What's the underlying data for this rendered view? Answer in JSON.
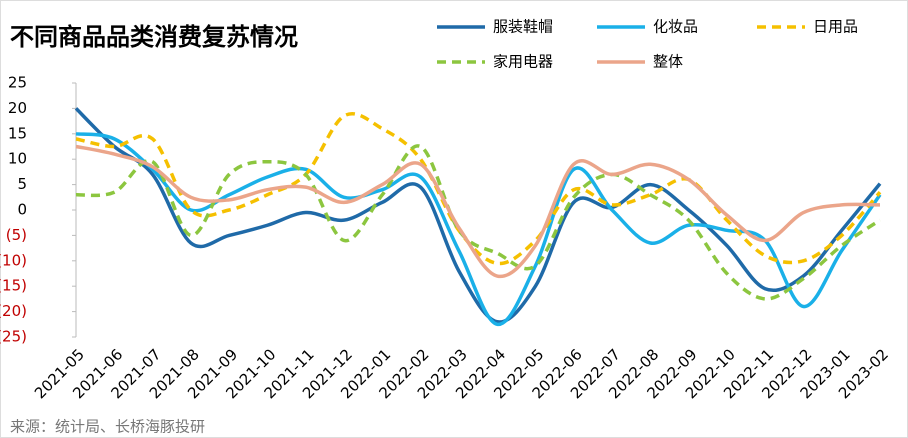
{
  "chart_data": {
    "type": "line",
    "title": "不同商品品类消费复苏情况",
    "source": "来源：统计局、长桥海豚投研",
    "categories": [
      "2021-05",
      "2021-06",
      "2021-07",
      "2021-08",
      "2021-09",
      "2021-10",
      "2021-11",
      "2021-12",
      "2022-01",
      "2022-02",
      "2022-03",
      "2022-04",
      "2022-05",
      "2022-06",
      "2022-07",
      "2022-08",
      "2022-09",
      "2022-10",
      "2022-11",
      "2022-12",
      "2023-01",
      "2023-02"
    ],
    "series": [
      {
        "name": "服装鞋帽",
        "color": "#1f6aa8",
        "dashed": false,
        "values": [
          20,
          12.5,
          7,
          -6.5,
          -5,
          -3,
          -0.5,
          -2,
          1.5,
          4.5,
          -12,
          -22,
          -15,
          1.5,
          0.5,
          5,
          0,
          -7,
          -15.5,
          -13,
          -4,
          5.2
        ]
      },
      {
        "name": "化妆品",
        "color": "#1ab0e8",
        "dashed": false,
        "values": [
          15,
          14,
          8,
          0,
          3,
          6.5,
          8,
          2.5,
          4,
          6.5,
          -8,
          -22.5,
          -11,
          8,
          0,
          -6.5,
          -3,
          -4,
          -6,
          -19,
          -8,
          3
        ]
      },
      {
        "name": "日用品",
        "color": "#f5c000",
        "dashed": true,
        "values": [
          14,
          12.5,
          14,
          0,
          0,
          3,
          7,
          18.5,
          16,
          10,
          -4,
          -10.5,
          -6,
          4,
          1,
          3,
          6,
          -2,
          -9,
          -10,
          -5,
          3.5
        ]
      },
      {
        "name": "家用电器",
        "color": "#8cc63f",
        "dashed": true,
        "values": [
          3,
          3.5,
          9.5,
          -5,
          7,
          9.5,
          7,
          -6,
          3,
          12.5,
          -4,
          -8.5,
          -11,
          2.5,
          7,
          3,
          -2,
          -12.5,
          -17.5,
          -13.5,
          -7,
          -2
        ]
      },
      {
        "name": "整体",
        "color": "#eba58a",
        "dashed": false,
        "values": [
          12.5,
          11,
          8.5,
          2.5,
          2,
          4,
          4.5,
          1.5,
          5,
          9,
          -3.5,
          -13,
          -7,
          9,
          7,
          9,
          6,
          -1,
          -6,
          -0.5,
          1,
          1
        ]
      }
    ],
    "ylim": [
      -25,
      25
    ],
    "yticks": [
      {
        "value": -25,
        "label": "(25)"
      },
      {
        "value": -20,
        "label": "(20)"
      },
      {
        "value": -15,
        "label": "(15)"
      },
      {
        "value": -10,
        "label": "(10)"
      },
      {
        "value": -5,
        "label": "(5)"
      },
      0,
      5,
      10,
      15,
      20,
      25
    ],
    "negative_tick_color": "#c00000"
  }
}
